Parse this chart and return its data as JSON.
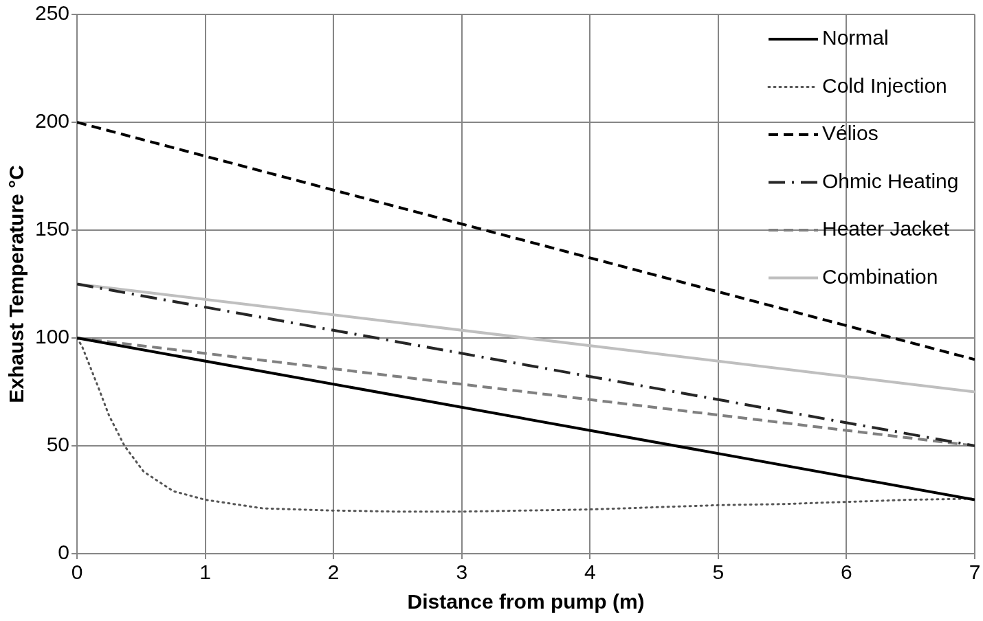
{
  "chart_data": {
    "type": "line",
    "xlabel": "Distance from pump (m)",
    "ylabel": "Exhaust Temperature °C",
    "xlim": [
      0,
      7
    ],
    "xticks": [
      0,
      1,
      2,
      3,
      4,
      5,
      6,
      7
    ],
    "ylim": [
      0,
      250
    ],
    "yticks": [
      0,
      50,
      100,
      150,
      200,
      250
    ],
    "grid": true,
    "legend": "top right",
    "marker": "none",
    "series": [
      {
        "name": "Normal",
        "color": "#000000",
        "line_style": "solid",
        "x": [
          0,
          7
        ],
        "values": [
          100,
          25
        ]
      },
      {
        "name": "Cold Injection",
        "color": "#555555",
        "line_style": "dotted",
        "x": [
          0,
          0.04,
          0.16,
          0.25,
          0.37,
          0.52,
          0.75,
          1,
          1.45,
          2,
          2.5,
          3,
          3.5,
          4,
          4.5,
          5,
          5.5,
          6,
          6.5,
          7
        ],
        "values": [
          100,
          96,
          78,
          64,
          50,
          38,
          29,
          25,
          21,
          20,
          19.5,
          19.5,
          20,
          20.5,
          21.5,
          22.5,
          23,
          24,
          25,
          25.5
        ]
      },
      {
        "name": "Vélios",
        "color": "#000000",
        "line_style": "dashed",
        "x": [
          0,
          7
        ],
        "values": [
          200,
          90
        ]
      },
      {
        "name": "Ohmic Heating",
        "color": "#262626",
        "line_style": "dashdot",
        "x": [
          0,
          7
        ],
        "values": [
          125,
          50
        ]
      },
      {
        "name": "Heater Jacket",
        "color": "#808080",
        "line_style": "dashed",
        "x": [
          0,
          7
        ],
        "values": [
          100,
          50
        ]
      },
      {
        "name": "Combination",
        "color": "#bfbfbf",
        "line_style": "solid",
        "x": [
          0,
          7
        ],
        "values": [
          125,
          75
        ]
      }
    ]
  }
}
